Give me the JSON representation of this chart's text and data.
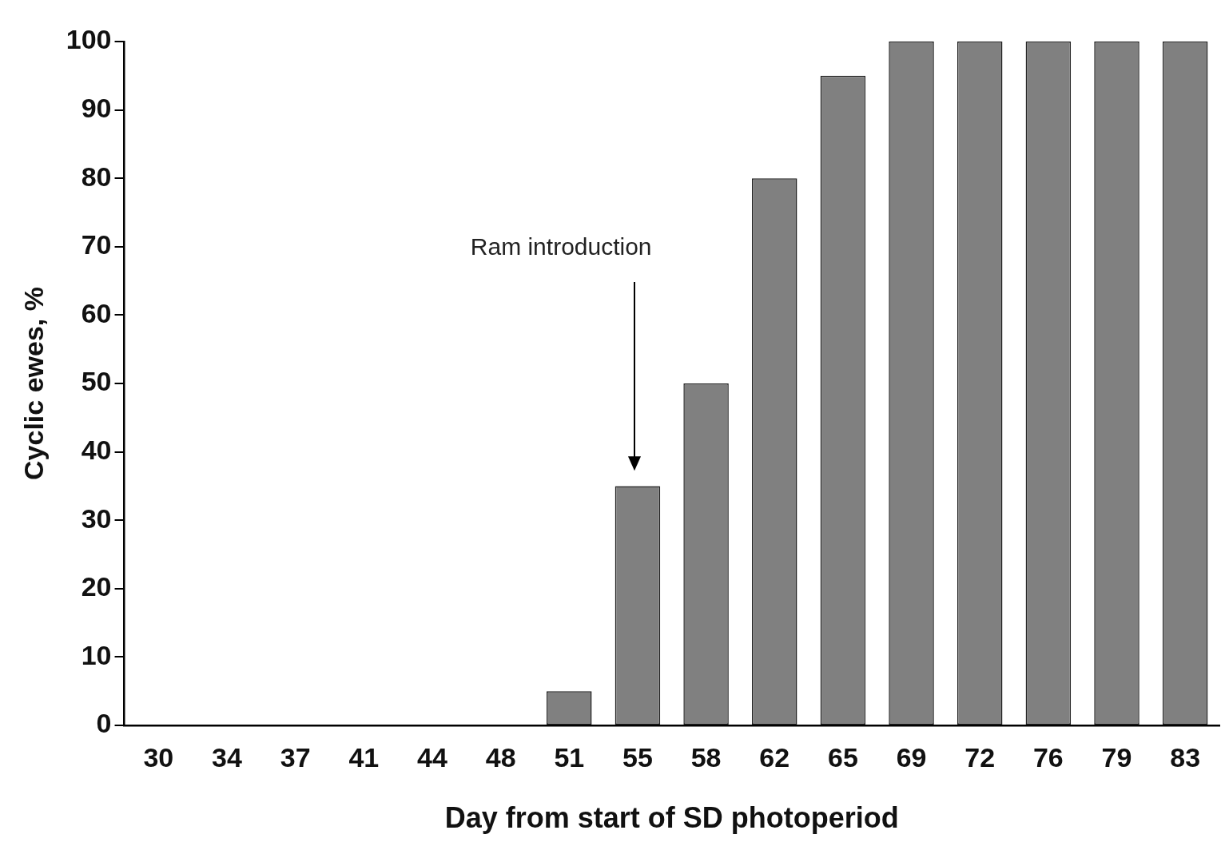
{
  "chart_data": {
    "type": "bar",
    "xlabel": "Day from start of SD photoperiod",
    "ylabel": "Cyclic ewes, %",
    "categories": [
      "30",
      "34",
      "37",
      "41",
      "44",
      "48",
      "51",
      "55",
      "58",
      "62",
      "65",
      "69",
      "72",
      "76",
      "79",
      "83"
    ],
    "values": [
      0,
      0,
      0,
      0,
      0,
      0,
      5,
      35,
      50,
      80,
      95,
      100,
      100,
      100,
      100,
      100
    ],
    "color": "#808080",
    "ylim": [
      0,
      100
    ],
    "yticks": [
      0,
      10,
      20,
      30,
      40,
      50,
      60,
      70,
      80,
      90,
      100
    ],
    "grid": false,
    "legend": false,
    "annotations": [
      "Ram introduction"
    ]
  }
}
